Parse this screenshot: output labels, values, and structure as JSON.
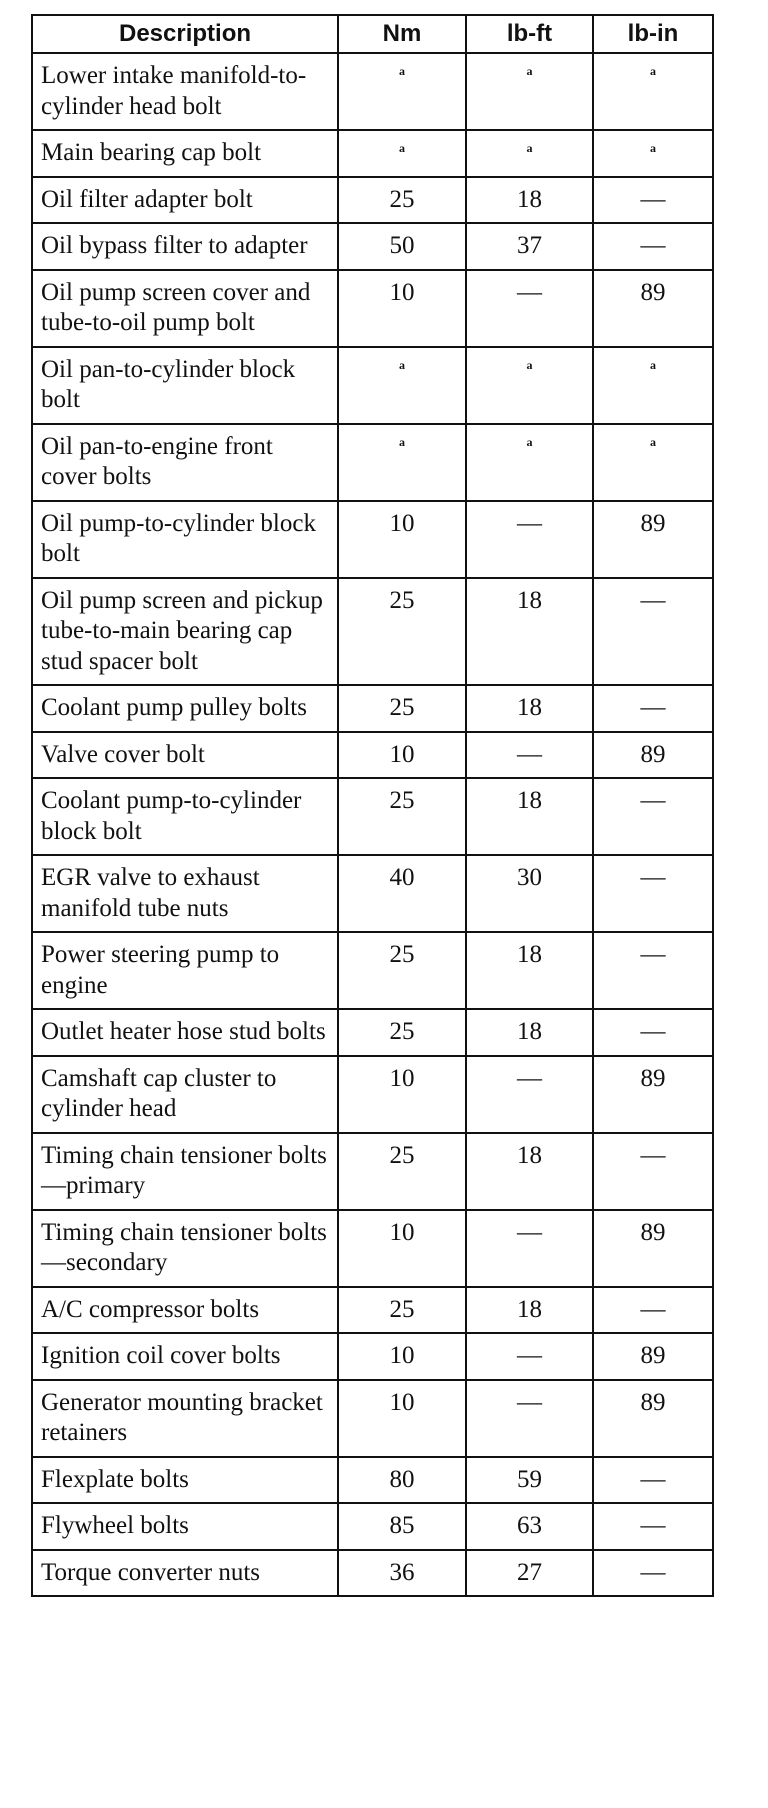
{
  "headers": [
    "Description",
    "Nm",
    "lb-ft",
    "lb-in"
  ],
  "rows": [
    {
      "desc": "Lower intake manifold-to-cylinder head bolt",
      "nm": "a",
      "lbft": "a",
      "lbin": "a"
    },
    {
      "desc": "Main bearing cap bolt",
      "nm": "a",
      "lbft": "a",
      "lbin": "a"
    },
    {
      "desc": "Oil filter adapter bolt",
      "nm": "25",
      "lbft": "18",
      "lbin": "—"
    },
    {
      "desc": "Oil bypass filter to adapter",
      "nm": "50",
      "lbft": "37",
      "lbin": "—"
    },
    {
      "desc": "Oil pump screen cover and tube-to-oil pump bolt",
      "nm": "10",
      "lbft": "—",
      "lbin": "89"
    },
    {
      "desc": "Oil pan-to-cylinder block bolt",
      "nm": "a",
      "lbft": "a",
      "lbin": "a"
    },
    {
      "desc": "Oil pan-to-engine front cover bolts",
      "nm": "a",
      "lbft": "a",
      "lbin": "a"
    },
    {
      "desc": "Oil pump-to-cylinder block bolt",
      "nm": "10",
      "lbft": "—",
      "lbin": "89"
    },
    {
      "desc": "Oil pump screen and pickup tube-to-main bearing cap stud spacer bolt",
      "nm": "25",
      "lbft": "18",
      "lbin": "—"
    },
    {
      "desc": "Coolant pump pulley bolts",
      "nm": "25",
      "lbft": "18",
      "lbin": "—"
    },
    {
      "desc": "Valve cover bolt",
      "nm": "10",
      "lbft": "—",
      "lbin": "89"
    },
    {
      "desc": "Coolant pump-to-cylinder block bolt",
      "nm": "25",
      "lbft": "18",
      "lbin": "—"
    },
    {
      "desc": "EGR valve to exhaust manifold tube nuts",
      "nm": "40",
      "lbft": "30",
      "lbin": "—"
    },
    {
      "desc": "Power steering pump to engine",
      "nm": "25",
      "lbft": "18",
      "lbin": "—"
    },
    {
      "desc": "Outlet heater hose stud bolts",
      "nm": "25",
      "lbft": "18",
      "lbin": "—"
    },
    {
      "desc": "Camshaft cap cluster to cylinder head",
      "nm": "10",
      "lbft": "—",
      "lbin": "89"
    },
    {
      "desc": "Timing chain tensioner bolts—primary",
      "nm": "25",
      "lbft": "18",
      "lbin": "—"
    },
    {
      "desc": "Timing chain tensioner bolts—secondary",
      "nm": "10",
      "lbft": "—",
      "lbin": "89"
    },
    {
      "desc": "A/C compressor bolts",
      "nm": "25",
      "lbft": "18",
      "lbin": "—"
    },
    {
      "desc": "Ignition coil cover bolts",
      "nm": "10",
      "lbft": "—",
      "lbin": "89"
    },
    {
      "desc": "Generator mounting bracket retainers",
      "nm": "10",
      "lbft": "—",
      "lbin": "89"
    },
    {
      "desc": "Flexplate bolts",
      "nm": "80",
      "lbft": "59",
      "lbin": "—"
    },
    {
      "desc": "Flywheel bolts",
      "nm": "85",
      "lbft": "63",
      "lbin": "—"
    },
    {
      "desc": "Torque converter nuts",
      "nm": "36",
      "lbft": "27",
      "lbin": "—"
    }
  ]
}
